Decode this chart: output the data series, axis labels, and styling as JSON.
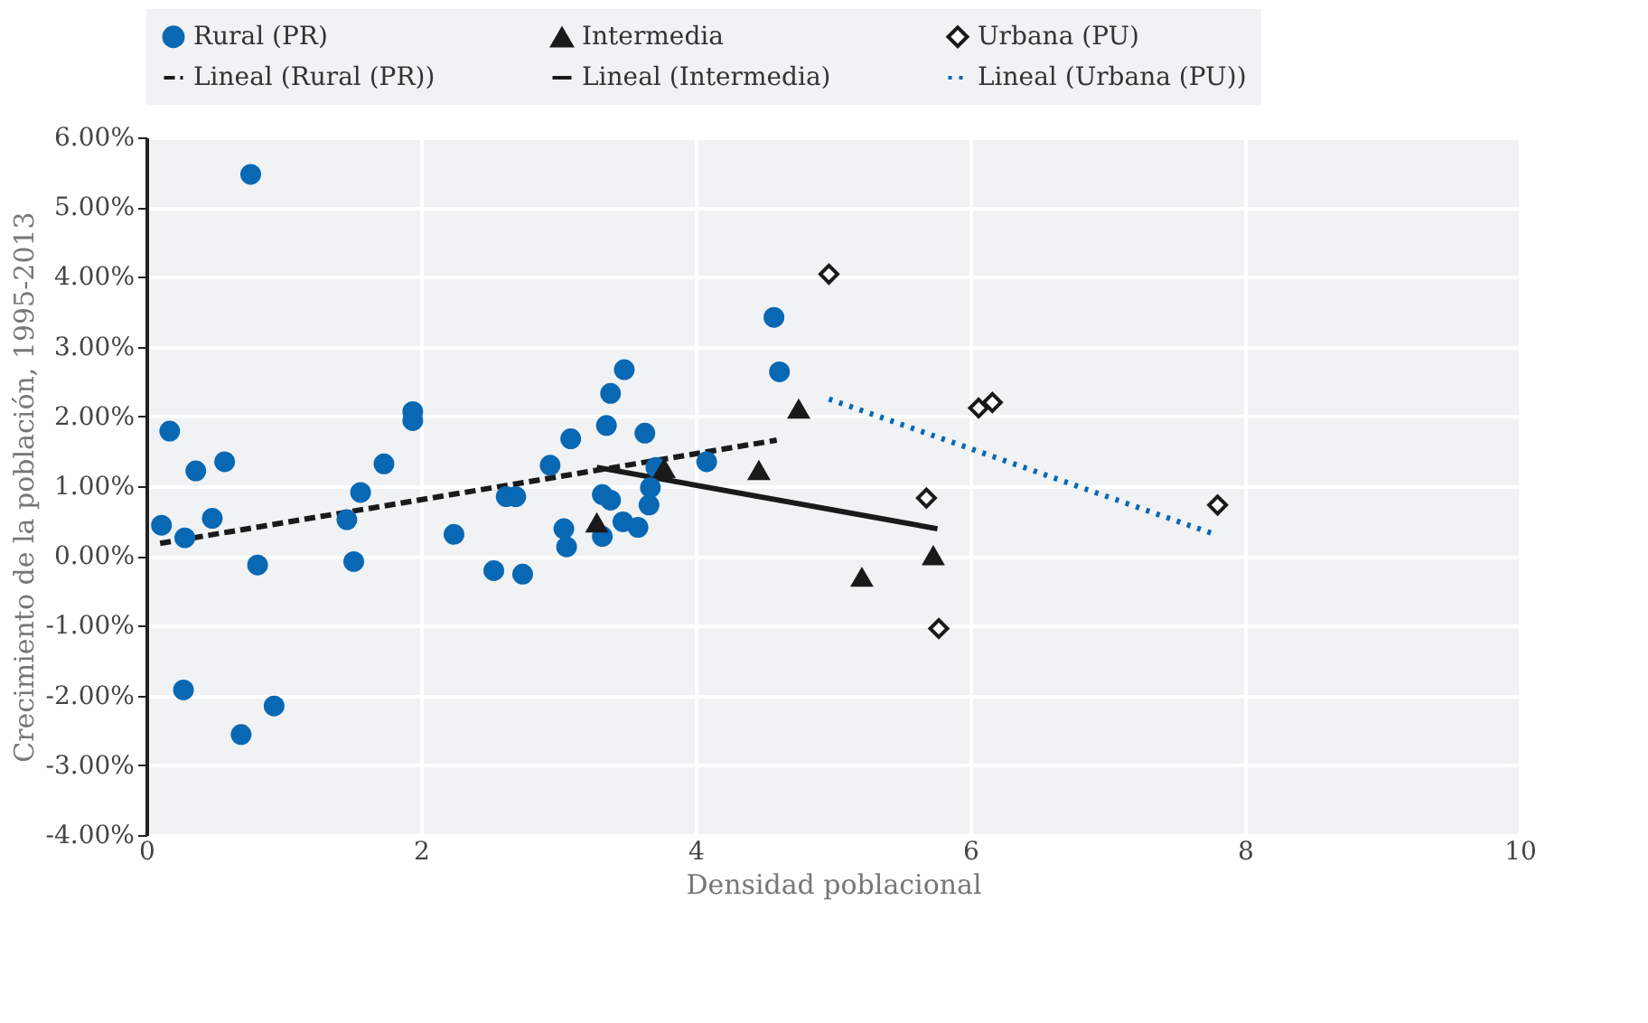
{
  "chart_data": {
    "type": "scatter",
    "xlabel": "Densidad poblacional",
    "ylabel": "Crecimiento de la población, 1995-2013",
    "xlim": [
      0,
      10
    ],
    "xticks": [
      0,
      2,
      4,
      6,
      8,
      10
    ],
    "ylim": [
      -4,
      6
    ],
    "yticks": [
      {
        "value": -4,
        "label": "-4.00%"
      },
      {
        "value": -3,
        "label": "-3.00%"
      },
      {
        "value": -2,
        "label": "-2.00%"
      },
      {
        "value": -1,
        "label": "-1.00%"
      },
      {
        "value": 0,
        "label": "0.00%"
      },
      {
        "value": 1,
        "label": "1.00%"
      },
      {
        "value": 2,
        "label": "2.00%"
      },
      {
        "value": 3,
        "label": "3.00%"
      },
      {
        "value": 4,
        "label": "4.00%"
      },
      {
        "value": 5,
        "label": "5.00%"
      },
      {
        "value": 6,
        "label": "6.00%"
      }
    ],
    "grid": true,
    "legend": "top",
    "series": [
      {
        "name": "Rural (PR)",
        "type": "scatter",
        "marker": "circle",
        "color": "#0868b4",
        "x": [
          0.11,
          0.17,
          0.28,
          0.27,
          0.36,
          0.48,
          0.57,
          0.69,
          0.76,
          0.81,
          0.93,
          1.46,
          1.51,
          1.56,
          1.73,
          1.94,
          1.94,
          2.24,
          2.53,
          2.62,
          2.69,
          2.74,
          2.94,
          3.04,
          3.06,
          3.09,
          3.32,
          3.32,
          3.35,
          3.38,
          3.38,
          3.48,
          3.47,
          3.58,
          3.63,
          3.66,
          3.67,
          3.71,
          4.08,
          4.57,
          4.61
        ],
        "values": [
          0.44,
          1.79,
          0.26,
          -1.92,
          1.22,
          0.54,
          1.35,
          -2.56,
          5.47,
          -0.13,
          -2.15,
          0.52,
          -0.08,
          0.91,
          1.32,
          2.07,
          1.94,
          0.31,
          -0.21,
          0.85,
          0.85,
          -0.26,
          1.3,
          0.39,
          0.13,
          1.68,
          0.88,
          0.28,
          1.87,
          0.8,
          2.33,
          2.67,
          0.49,
          0.41,
          1.76,
          0.73,
          0.98,
          1.27,
          1.35,
          3.42,
          2.64
        ]
      },
      {
        "name": "Intermedia",
        "type": "scatter",
        "marker": "triangle",
        "color": "#1a1a1a",
        "x": [
          3.28,
          3.77,
          4.46,
          4.75,
          5.21,
          5.73
        ],
        "values": [
          0.47,
          1.25,
          1.22,
          2.1,
          -0.31,
          0.0
        ]
      },
      {
        "name": "Urbana (PU)",
        "type": "scatter",
        "marker": "diamond",
        "color": "#1a1a1a",
        "x": [
          4.97,
          5.68,
          5.77,
          6.06,
          6.16,
          7.8
        ],
        "values": [
          4.04,
          0.83,
          -1.04,
          2.12,
          2.2,
          0.73
        ]
      },
      {
        "name": "Lineal (Rural (PR))",
        "type": "line",
        "line_style": "dashed",
        "color": "#1a1a1a",
        "x": [
          0.1,
          4.59
        ],
        "values": [
          0.18,
          1.66
        ]
      },
      {
        "name": "Lineal (Intermedia)",
        "type": "line",
        "line_style": "solid",
        "color": "#1a1a1a",
        "x": [
          3.28,
          5.76
        ],
        "values": [
          1.27,
          0.39
        ]
      },
      {
        "name": "Lineal (Urbana (PU))",
        "type": "line",
        "line_style": "dotted",
        "color": "#0868b4",
        "x": [
          4.97,
          7.78
        ],
        "values": [
          2.25,
          0.31
        ]
      }
    ]
  }
}
